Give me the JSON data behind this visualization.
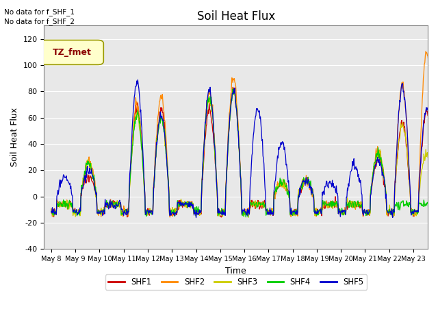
{
  "title": "Soil Heat Flux",
  "ylabel": "Soil Heat Flux",
  "xlabel": "Time",
  "ylim": [
    -40,
    130
  ],
  "background_color": "#e8e8e8",
  "annotations": [
    "No data for f_SHF_1",
    "No data for f_SHF_2"
  ],
  "legend_label": "TZ_fmet",
  "legend_colors": {
    "SHF1": "#cc0000",
    "SHF2": "#ff8800",
    "SHF3": "#cccc00",
    "SHF4": "#00cc00",
    "SHF5": "#0000cc"
  },
  "xtick_labels": [
    "May 8",
    "May 9",
    "May 10",
    "May 11",
    "May 12",
    "May 13",
    "May 14",
    "May 15",
    "May 16",
    "May 17",
    "May 18",
    "May 19",
    "May 20",
    "May 21",
    "May 22",
    "May 23"
  ],
  "ytick_vals": [
    -40,
    -20,
    0,
    20,
    40,
    60,
    80,
    100,
    120
  ]
}
